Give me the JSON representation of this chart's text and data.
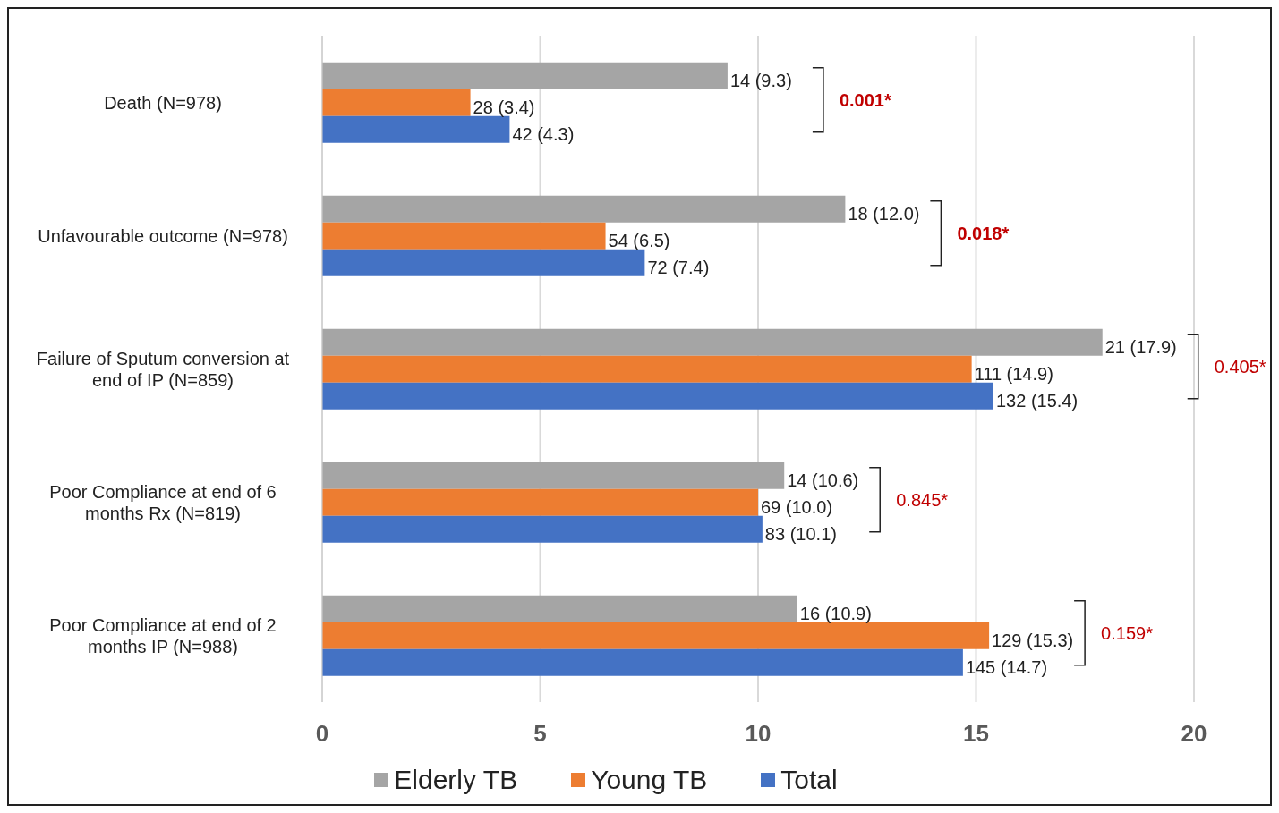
{
  "chart_data": {
    "type": "bar",
    "orientation": "horizontal",
    "categories": [
      "Death (N=978)",
      "Unfavourable outcome (N=978)",
      "Failure of Sputum conversion at end of IP (N=859)",
      "Poor Compliance at end of 6 months Rx (N=819)",
      "Poor Compliance at end of 2 months IP (N=988)"
    ],
    "series": [
      {
        "name": "Elderly TB",
        "color": "#a5a5a5",
        "values": [
          9.3,
          12.0,
          17.9,
          10.6,
          10.9
        ],
        "value_labels": [
          "14 (9.3)",
          "18 (12.0)",
          "21 (17.9)",
          "14 (10.6)",
          "16 (10.9)"
        ]
      },
      {
        "name": "Young TB",
        "color": "#ed7d31",
        "values": [
          3.4,
          6.5,
          14.9,
          10.0,
          15.3
        ],
        "value_labels": [
          "28 (3.4)",
          "54 (6.5)",
          "111 (14.9)",
          "69 (10.0)",
          "129 (15.3)"
        ]
      },
      {
        "name": "Total",
        "color": "#4472c4",
        "values": [
          4.3,
          7.4,
          15.4,
          10.1,
          14.7
        ],
        "value_labels": [
          "42 (4.3)",
          "72 (7.4)",
          "132 (15.4)",
          "83 (10.1)",
          "145 (14.7)"
        ]
      }
    ],
    "xlim": [
      0,
      20
    ],
    "xticks": [
      0,
      5,
      10,
      15,
      20
    ],
    "grid": "x",
    "legend": "bottom",
    "annotations": [
      "0.001*",
      "0.018*",
      "0.405*",
      "0.845*",
      "0.159*"
    ]
  }
}
